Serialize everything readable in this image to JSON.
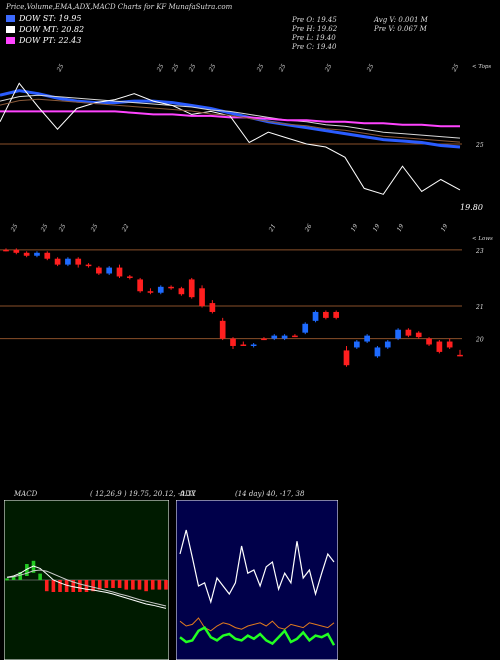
{
  "header": {
    "title": "Price,Volume,EMA,ADX,MACD Charts for KF MunafaSutra.com"
  },
  "legend": [
    {
      "label": "DOW ST: 19.95",
      "color": "#3d6bff"
    },
    {
      "label": "DOW MT: 20.82",
      "color": "#ffffff"
    },
    {
      "label": "DOW PT: 22.43",
      "color": "#ff44ff"
    }
  ],
  "stats": {
    "col1": [
      "Pre O: 19.45",
      "Pre H: 19.62",
      "Pre L: 19.40",
      "Pre C: 19.40"
    ],
    "col2": [
      "Avg V: 0.001 M",
      "Pre V: 0.067 M"
    ]
  },
  "colors": {
    "up": "#1e6bff",
    "down": "#ff1f1f",
    "grid": "#8a4f2a",
    "ema_blue": "#2a5cff",
    "ema_pink": "#ff44ff",
    "macd_bg": "#001b00",
    "adx_bg": "#00004a"
  },
  "chart_data": [
    {
      "type": "line",
      "panel": "ema",
      "top_date_labels": [
        "25",
        "25",
        "25",
        "25",
        "25",
        "25",
        "25",
        "25",
        "25",
        "25"
      ],
      "bottom_date_labels": [
        "25",
        "25",
        "25",
        "25",
        "22",
        "21",
        "26",
        "19",
        "19",
        "19",
        "19"
      ],
      "right_labels": [
        "< Tops",
        "25"
      ],
      "last_price_label": "19.80",
      "hline": 25,
      "series": [
        {
          "name": "DOW ST",
          "values": [
            28.3,
            28.6,
            28.4,
            28.1,
            27.9,
            27.8,
            27.8,
            27.9,
            27.9,
            27.8,
            27.6,
            27.4,
            27.1,
            26.8,
            26.5,
            26.3,
            26.1,
            25.9,
            25.7,
            25.5,
            25.3,
            25.2,
            25.1,
            24.9,
            24.8
          ]
        },
        {
          "name": "DOW MT",
          "values": [
            27.9,
            28.2,
            28.3,
            28.2,
            28.1,
            28.0,
            27.9,
            27.8,
            27.7,
            27.6,
            27.5,
            27.3,
            27.2,
            27.0,
            26.8,
            26.6,
            26.5,
            26.3,
            26.2,
            26.0,
            25.8,
            25.7,
            25.6,
            25.5,
            25.4
          ]
        },
        {
          "name": "DOW PT",
          "values": [
            27.2,
            27.2,
            27.2,
            27.2,
            27.2,
            27.2,
            27.2,
            27.1,
            27.0,
            27.0,
            26.9,
            26.9,
            26.8,
            26.8,
            26.7,
            26.6,
            26.6,
            26.5,
            26.5,
            26.4,
            26.4,
            26.3,
            26.3,
            26.2,
            26.2
          ]
        },
        {
          "name": "Price",
          "values": [
            26.5,
            29.1,
            27.5,
            26.0,
            27.4,
            27.8,
            28.0,
            28.4,
            27.9,
            27.6,
            27.0,
            27.2,
            26.9,
            25.1,
            25.8,
            25.4,
            25.0,
            24.8,
            24.1,
            22.0,
            21.6,
            23.5,
            21.8,
            22.6,
            21.9
          ]
        }
      ]
    },
    {
      "type": "candlestick",
      "panel": "price",
      "right_labels": [
        "< Lows",
        "23",
        "21",
        "20"
      ],
      "hlines": [
        23.0,
        21.1,
        20.0
      ],
      "candles": [
        {
          "o": 23.0,
          "c": 23.0,
          "h": 23.05,
          "l": 22.95,
          "d": "down"
        },
        {
          "o": 23.0,
          "c": 22.9,
          "h": 23.05,
          "l": 22.85,
          "d": "down"
        },
        {
          "o": 22.9,
          "c": 22.8,
          "h": 22.95,
          "l": 22.75,
          "d": "down"
        },
        {
          "o": 22.8,
          "c": 22.9,
          "h": 22.95,
          "l": 22.75,
          "d": "up"
        },
        {
          "o": 22.9,
          "c": 22.7,
          "h": 22.95,
          "l": 22.65,
          "d": "down"
        },
        {
          "o": 22.7,
          "c": 22.5,
          "h": 22.75,
          "l": 22.45,
          "d": "down"
        },
        {
          "o": 22.5,
          "c": 22.7,
          "h": 22.75,
          "l": 22.45,
          "d": "up"
        },
        {
          "o": 22.7,
          "c": 22.5,
          "h": 22.75,
          "l": 22.4,
          "d": "down"
        },
        {
          "o": 22.5,
          "c": 22.45,
          "h": 22.55,
          "l": 22.4,
          "d": "down"
        },
        {
          "o": 22.4,
          "c": 22.2,
          "h": 22.45,
          "l": 22.15,
          "d": "down"
        },
        {
          "o": 22.2,
          "c": 22.4,
          "h": 22.45,
          "l": 22.15,
          "d": "up"
        },
        {
          "o": 22.4,
          "c": 22.1,
          "h": 22.5,
          "l": 22.05,
          "d": "down"
        },
        {
          "o": 22.1,
          "c": 22.05,
          "h": 22.15,
          "l": 22.0,
          "d": "down"
        },
        {
          "o": 22.0,
          "c": 21.6,
          "h": 22.05,
          "l": 21.55,
          "d": "down"
        },
        {
          "o": 21.6,
          "c": 21.55,
          "h": 21.7,
          "l": 21.5,
          "d": "down"
        },
        {
          "o": 21.55,
          "c": 21.75,
          "h": 21.8,
          "l": 21.5,
          "d": "up"
        },
        {
          "o": 21.75,
          "c": 21.7,
          "h": 21.8,
          "l": 21.65,
          "d": "down"
        },
        {
          "o": 21.7,
          "c": 21.5,
          "h": 21.75,
          "l": 21.45,
          "d": "down"
        },
        {
          "o": 22.0,
          "c": 21.4,
          "h": 22.05,
          "l": 21.35,
          "d": "down"
        },
        {
          "o": 21.7,
          "c": 21.1,
          "h": 21.8,
          "l": 21.05,
          "d": "down"
        },
        {
          "o": 21.2,
          "c": 20.9,
          "h": 21.3,
          "l": 20.85,
          "d": "down"
        },
        {
          "o": 20.6,
          "c": 20.0,
          "h": 20.7,
          "l": 19.95,
          "d": "down"
        },
        {
          "o": 20.0,
          "c": 19.75,
          "h": 20.05,
          "l": 19.65,
          "d": "down"
        },
        {
          "o": 19.8,
          "c": 19.8,
          "h": 19.9,
          "l": 19.75,
          "d": "down"
        },
        {
          "o": 19.75,
          "c": 19.8,
          "h": 19.85,
          "l": 19.7,
          "d": "up"
        },
        {
          "o": 20.0,
          "c": 20.0,
          "h": 20.05,
          "l": 19.95,
          "d": "down"
        },
        {
          "o": 20.0,
          "c": 20.1,
          "h": 20.15,
          "l": 19.95,
          "d": "up"
        },
        {
          "o": 20.0,
          "c": 20.1,
          "h": 20.15,
          "l": 19.95,
          "d": "up"
        },
        {
          "o": 20.1,
          "c": 20.1,
          "h": 20.15,
          "l": 20.05,
          "d": "down"
        },
        {
          "o": 20.2,
          "c": 20.5,
          "h": 20.55,
          "l": 20.15,
          "d": "up"
        },
        {
          "o": 20.6,
          "c": 20.9,
          "h": 20.95,
          "l": 20.55,
          "d": "up"
        },
        {
          "o": 20.9,
          "c": 20.7,
          "h": 20.95,
          "l": 20.65,
          "d": "down"
        },
        {
          "o": 20.9,
          "c": 20.7,
          "h": 20.95,
          "l": 20.65,
          "d": "down"
        },
        {
          "o": 19.6,
          "c": 19.1,
          "h": 19.75,
          "l": 19.05,
          "d": "down"
        },
        {
          "o": 19.7,
          "c": 19.9,
          "h": 19.95,
          "l": 19.65,
          "d": "up"
        },
        {
          "o": 19.9,
          "c": 20.1,
          "h": 20.15,
          "l": 19.85,
          "d": "up"
        },
        {
          "o": 19.4,
          "c": 19.7,
          "h": 19.75,
          "l": 19.35,
          "d": "up"
        },
        {
          "o": 19.7,
          "c": 19.9,
          "h": 19.95,
          "l": 19.65,
          "d": "up"
        },
        {
          "o": 20.0,
          "c": 20.3,
          "h": 20.35,
          "l": 19.95,
          "d": "up"
        },
        {
          "o": 20.3,
          "c": 20.1,
          "h": 20.35,
          "l": 20.05,
          "d": "down"
        },
        {
          "o": 20.2,
          "c": 20.05,
          "h": 20.25,
          "l": 20.0,
          "d": "down"
        },
        {
          "o": 20.0,
          "c": 19.8,
          "h": 20.05,
          "l": 19.75,
          "d": "down"
        },
        {
          "o": 19.9,
          "c": 19.55,
          "h": 19.95,
          "l": 19.5,
          "d": "down"
        },
        {
          "o": 19.9,
          "c": 19.7,
          "h": 20.0,
          "l": 19.65,
          "d": "down"
        },
        {
          "o": 19.45,
          "c": 19.4,
          "h": 19.62,
          "l": 19.4,
          "d": "down"
        }
      ]
    },
    {
      "type": "line",
      "panel": "macd",
      "title": "MACD",
      "params": "( 12,26,9 ) 19.75, 20.12, -0.37",
      "series": [
        {
          "name": "MACD",
          "values": [
            0.02,
            0.05,
            0.12,
            0.22,
            0.3,
            0.24,
            0.1,
            -0.05,
            -0.12,
            -0.18,
            -0.22,
            -0.25,
            -0.28,
            -0.3,
            -0.33,
            -0.36,
            -0.4,
            -0.45,
            -0.5,
            -0.55,
            -0.6,
            -0.65,
            -0.68,
            -0.72,
            -0.76
          ]
        },
        {
          "name": "Signal",
          "values": [
            0.01,
            0.03,
            0.07,
            0.12,
            0.18,
            0.2,
            0.17,
            0.1,
            0.03,
            -0.04,
            -0.1,
            -0.15,
            -0.19,
            -0.23,
            -0.27,
            -0.31,
            -0.35,
            -0.4,
            -0.44,
            -0.49,
            -0.54,
            -0.58,
            -0.62,
            -0.66,
            -0.7
          ]
        }
      ]
    },
    {
      "type": "line",
      "panel": "adx",
      "title": "ADX",
      "params": "(14 day) 40, -17, 38",
      "series": [
        {
          "name": "ADX",
          "values": [
            60,
            75,
            58,
            40,
            42,
            30,
            45,
            40,
            35,
            42,
            65,
            48,
            50,
            40,
            52,
            55,
            38,
            48,
            42,
            68,
            45,
            50,
            35,
            48,
            60,
            55
          ]
        },
        {
          "name": "+DI",
          "values": [
            18,
            15,
            16,
            20,
            14,
            12,
            15,
            17,
            16,
            14,
            13,
            15,
            16,
            17,
            15,
            18,
            14,
            13,
            16,
            15,
            14,
            17,
            16,
            15,
            14,
            17
          ]
        },
        {
          "name": "-DI",
          "values": [
            8,
            5,
            6,
            12,
            14,
            8,
            6,
            9,
            10,
            7,
            6,
            9,
            7,
            10,
            6,
            4,
            8,
            12,
            5,
            7,
            11,
            6,
            9,
            8,
            10,
            3
          ]
        }
      ]
    }
  ]
}
